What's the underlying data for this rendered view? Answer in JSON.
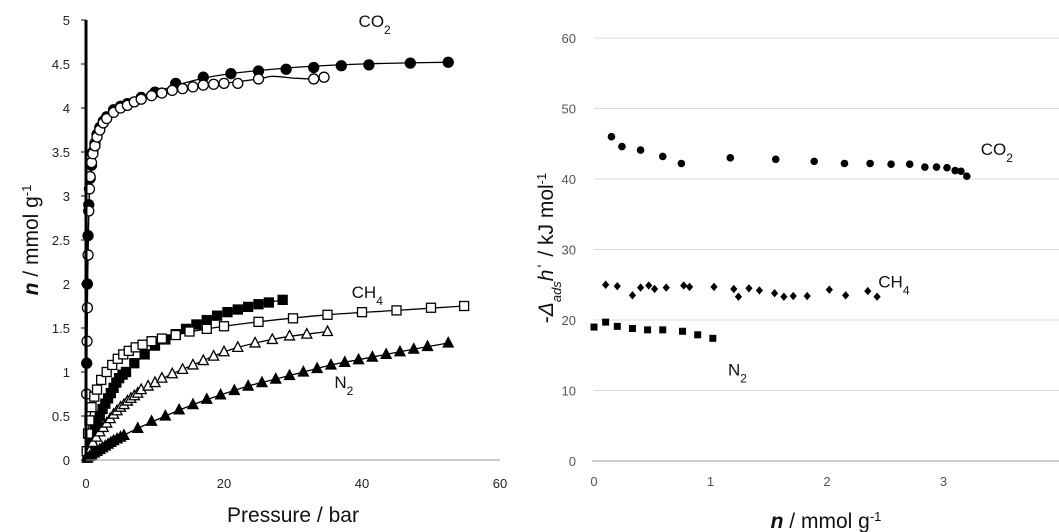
{
  "chart_data": [
    {
      "type": "scatter",
      "xlabel": "Pressure / bar",
      "ylabel": {
        "italic": "n",
        "rest": " / mmol g",
        "sup": "-1"
      },
      "xlim": [
        0,
        60
      ],
      "ylim": [
        0,
        5
      ],
      "xticks": [
        "0",
        "20",
        "40",
        "60"
      ],
      "yticks": [
        "0",
        "0.5",
        "1",
        "1.5",
        "2",
        "2.5",
        "3",
        "3.5",
        "4",
        "4.5",
        "5"
      ],
      "series": [
        {
          "name": "CO2",
          "marker": "circle",
          "fill": "#000000",
          "x": [
            0.1,
            0.2,
            0.3,
            0.4,
            0.6,
            0.8,
            1.0,
            1.3,
            1.6,
            2.0,
            2.5,
            3.0,
            4.0,
            5.0,
            6.0,
            8.0,
            10,
            13,
            17,
            21,
            25,
            29,
            33,
            37,
            41,
            47,
            52.5
          ],
          "y": [
            1.1,
            2.0,
            2.55,
            2.9,
            3.2,
            3.35,
            3.5,
            3.6,
            3.7,
            3.78,
            3.85,
            3.9,
            3.98,
            4.02,
            4.05,
            4.12,
            4.18,
            4.28,
            4.35,
            4.39,
            4.42,
            4.44,
            4.46,
            4.48,
            4.49,
            4.51,
            4.52
          ],
          "curve_x": [
            0,
            0.05,
            0.1,
            0.2,
            0.3,
            0.5,
            0.8,
            1,
            1.5,
            2,
            3,
            4,
            5,
            7,
            10,
            15,
            20,
            30,
            40,
            52.5
          ],
          "curve_y": [
            0,
            0.6,
            1.1,
            2.0,
            2.55,
            3.05,
            3.35,
            3.5,
            3.65,
            3.76,
            3.88,
            3.96,
            4.02,
            4.1,
            4.18,
            4.3,
            4.38,
            4.46,
            4.5,
            4.52
          ]
        },
        {
          "name": "CO2",
          "marker": "circle",
          "fill": "#ffffff",
          "x": [
            0.1,
            0.15,
            0.2,
            0.3,
            0.4,
            0.5,
            0.6,
            0.8,
            1.0,
            1.3,
            1.6,
            2.0,
            2.5,
            3.0,
            4.0,
            5.0,
            6.0,
            7.0,
            8.0,
            9.5,
            11,
            12.5,
            14,
            15.5,
            17,
            18.5,
            20,
            22,
            25,
            33,
            34.5
          ],
          "y": [
            0.75,
            1.35,
            1.73,
            2.33,
            2.83,
            3.08,
            3.22,
            3.38,
            3.48,
            3.57,
            3.67,
            3.75,
            3.83,
            3.88,
            3.95,
            4.0,
            4.03,
            4.07,
            4.1,
            4.14,
            4.17,
            4.2,
            4.22,
            4.24,
            4.26,
            4.27,
            4.28,
            4.28,
            4.33,
            4.33,
            4.35
          ],
          "curve_x": [
            0,
            0.05,
            0.1,
            0.2,
            0.3,
            0.5,
            0.8,
            1,
            1.5,
            2,
            3,
            4,
            6,
            10,
            15,
            20,
            25,
            27,
            30,
            33,
            34.5
          ],
          "curve_y": [
            0,
            0.4,
            0.75,
            1.73,
            2.33,
            3.08,
            3.38,
            3.48,
            3.62,
            3.75,
            3.88,
            3.95,
            4.03,
            4.15,
            4.24,
            4.28,
            4.33,
            4.36,
            4.34,
            4.33,
            4.35
          ]
        },
        {
          "name": "CH4",
          "marker": "square",
          "fill": "#000000",
          "x": [
            0.2,
            0.4,
            0.6,
            0.8,
            1.0,
            1.3,
            1.6,
            2.0,
            2.4,
            2.8,
            3.2,
            3.6,
            4.0,
            4.4,
            4.8,
            5.3,
            5.8,
            7.0,
            8.5,
            10,
            11.5,
            13,
            14.5,
            16,
            17.5,
            19,
            20.5,
            22,
            23.5,
            25,
            26.5,
            28.5
          ],
          "y": [
            0.05,
            0.1,
            0.15,
            0.2,
            0.28,
            0.35,
            0.42,
            0.5,
            0.58,
            0.64,
            0.7,
            0.76,
            0.82,
            0.88,
            0.93,
            0.97,
            1.0,
            1.1,
            1.2,
            1.3,
            1.37,
            1.43,
            1.49,
            1.54,
            1.59,
            1.64,
            1.68,
            1.71,
            1.74,
            1.77,
            1.79,
            1.82
          ],
          "curve_x": [
            0,
            1,
            2,
            3,
            4,
            5,
            6,
            8,
            10,
            13,
            16,
            20,
            24,
            28.5
          ],
          "curve_y": [
            0,
            0.28,
            0.5,
            0.67,
            0.82,
            0.95,
            1.02,
            1.16,
            1.3,
            1.43,
            1.54,
            1.66,
            1.75,
            1.82
          ]
        },
        {
          "name": "CH4",
          "marker": "square",
          "fill": "#ffffff",
          "x": [
            0.1,
            0.3,
            0.5,
            0.8,
            1.2,
            1.6,
            2.2,
            3,
            3.8,
            4.6,
            5.4,
            6.2,
            7.2,
            8.2,
            9.5,
            11,
            13,
            15,
            17.5,
            20,
            25,
            30,
            35,
            40,
            45,
            50,
            54.8
          ],
          "y": [
            0.1,
            0.3,
            0.45,
            0.6,
            0.72,
            0.8,
            0.91,
            1.0,
            1.08,
            1.15,
            1.2,
            1.24,
            1.28,
            1.31,
            1.35,
            1.38,
            1.42,
            1.46,
            1.49,
            1.52,
            1.57,
            1.61,
            1.65,
            1.68,
            1.7,
            1.73,
            1.75
          ],
          "curve_x": [
            0,
            0.3,
            0.8,
            1.6,
            3,
            5,
            8,
            12,
            17.5,
            25,
            35,
            45,
            54.8
          ],
          "curve_y": [
            0,
            0.3,
            0.6,
            0.8,
            1.0,
            1.18,
            1.3,
            1.4,
            1.49,
            1.57,
            1.65,
            1.7,
            1.75
          ]
        },
        {
          "name": "N2",
          "marker": "triangle",
          "fill": "#ffffff",
          "x": [
            0.2,
            0.5,
            1.0,
            1.5,
            2.0,
            2.5,
            3.0,
            3.5,
            4.0,
            4.5,
            5.0,
            5.5,
            6.0,
            6.5,
            7.0,
            7.5,
            8.0,
            9.0,
            10,
            11,
            12.5,
            14,
            15.5,
            17,
            18.5,
            20,
            22,
            24.5,
            27,
            29.5,
            32,
            35
          ],
          "y": [
            0.04,
            0.1,
            0.2,
            0.26,
            0.32,
            0.37,
            0.42,
            0.47,
            0.52,
            0.56,
            0.6,
            0.63,
            0.67,
            0.7,
            0.73,
            0.76,
            0.8,
            0.84,
            0.88,
            0.93,
            0.98,
            1.03,
            1.08,
            1.13,
            1.18,
            1.23,
            1.28,
            1.33,
            1.37,
            1.41,
            1.43,
            1.46
          ],
          "curve_x": [
            0,
            1,
            2,
            3,
            4,
            5,
            6,
            8,
            10,
            12.5,
            15.5,
            18.5,
            22,
            27,
            30,
            35
          ],
          "curve_y": [
            0,
            0.2,
            0.32,
            0.42,
            0.52,
            0.6,
            0.67,
            0.79,
            0.88,
            0.98,
            1.08,
            1.18,
            1.28,
            1.37,
            1.41,
            1.46
          ]
        },
        {
          "name": "N2",
          "marker": "triangle",
          "fill": "#000000",
          "x": [
            0.2,
            0.5,
            0.8,
            1.2,
            1.6,
            2.0,
            2.4,
            2.8,
            3.2,
            3.6,
            4.0,
            4.5,
            5.0,
            5.5,
            7.5,
            9.5,
            11.5,
            13.5,
            15.5,
            17.5,
            19.5,
            21.5,
            23.5,
            25.5,
            27.5,
            29.5,
            31.5,
            33.5,
            35.5,
            37.5,
            39.5,
            41.5,
            43.5,
            45.5,
            47.5,
            49.5,
            52.5
          ],
          "y": [
            0.02,
            0.04,
            0.06,
            0.08,
            0.1,
            0.12,
            0.14,
            0.16,
            0.18,
            0.2,
            0.22,
            0.24,
            0.26,
            0.28,
            0.36,
            0.44,
            0.5,
            0.57,
            0.63,
            0.69,
            0.74,
            0.79,
            0.84,
            0.88,
            0.92,
            0.96,
            1.0,
            1.04,
            1.08,
            1.11,
            1.14,
            1.17,
            1.2,
            1.23,
            1.26,
            1.29,
            1.33
          ],
          "curve_x": [
            0,
            2,
            5,
            7.5,
            11.5,
            15.5,
            19.5,
            23.5,
            27.5,
            31.5,
            35.5,
            39.5,
            43.5,
            47.5,
            52.5
          ],
          "curve_y": [
            0,
            0.12,
            0.26,
            0.36,
            0.5,
            0.63,
            0.74,
            0.84,
            0.92,
            1.0,
            1.08,
            1.14,
            1.2,
            1.26,
            1.33
          ]
        }
      ],
      "labels": [
        {
          "base": "CO",
          "sub": "2",
          "x": 39.5,
          "y": 4.92
        },
        {
          "base": "CH",
          "sub": "4",
          "x": 38.5,
          "y": 1.84
        },
        {
          "base": "N",
          "sub": "2",
          "x": 36,
          "y": 0.82
        }
      ]
    },
    {
      "type": "scatter",
      "xlabel": {
        "italic": "n",
        "rest": " / mmol g",
        "sup": "-1"
      },
      "ylabel": {
        "pre": "-",
        "italic1": "Δ",
        "sub": "ads",
        "italic2": "h",
        "accent": "ˈ",
        "rest": " / kJ mol",
        "sup": "-1"
      },
      "xlim": [
        0,
        4
      ],
      "ylim": [
        0,
        60
      ],
      "xticks": [
        "0",
        "1",
        "2",
        "3"
      ],
      "yticks": [
        "0",
        "10",
        "20",
        "30",
        "40",
        "50",
        "60"
      ],
      "grid": true,
      "series": [
        {
          "name": "CO2",
          "marker": "circle",
          "x": [
            0.15,
            0.24,
            0.4,
            0.59,
            0.75,
            1.17,
            1.56,
            1.89,
            2.15,
            2.37,
            2.55,
            2.71,
            2.84,
            2.94,
            3.03,
            3.1,
            3.15,
            3.2
          ],
          "y": [
            46,
            44.6,
            44.1,
            43.2,
            42.2,
            43,
            42.8,
            42.5,
            42.2,
            42.2,
            42.1,
            42.1,
            41.7,
            41.7,
            41.6,
            41.2,
            41.1,
            40.4
          ]
        },
        {
          "name": "CH4",
          "marker": "diamond",
          "x": [
            0.1,
            0.2,
            0.33,
            0.4,
            0.47,
            0.52,
            0.62,
            0.77,
            0.82,
            1.03,
            1.2,
            1.24,
            1.33,
            1.42,
            1.55,
            1.63,
            1.71,
            1.83,
            2.02,
            2.16,
            2.35,
            2.43
          ],
          "y": [
            25,
            24.8,
            23.5,
            24.6,
            24.9,
            24.4,
            24.6,
            24.9,
            24.7,
            24.7,
            24.4,
            23.3,
            24.5,
            24.2,
            23.8,
            23.3,
            23.4,
            23.4,
            24.3,
            23.5,
            24.1,
            23.3
          ],
          "labels_dummy": 0
        },
        {
          "name": "N2",
          "marker": "square",
          "x": [
            0,
            0.1,
            0.2,
            0.33,
            0.46,
            0.59,
            0.76,
            0.89,
            1.02
          ],
          "y": [
            19,
            19.7,
            19.1,
            18.8,
            18.6,
            18.6,
            18.4,
            17.9,
            17.4
          ]
        }
      ],
      "labels": [
        {
          "base": "CO",
          "sub": "2",
          "x": 3.32,
          "y": 43.4
        },
        {
          "base": "CH",
          "sub": "4",
          "x": 2.44,
          "y": 24.6
        },
        {
          "base": "N",
          "sub": "2",
          "x": 1.15,
          "y": 12.1
        }
      ]
    }
  ]
}
